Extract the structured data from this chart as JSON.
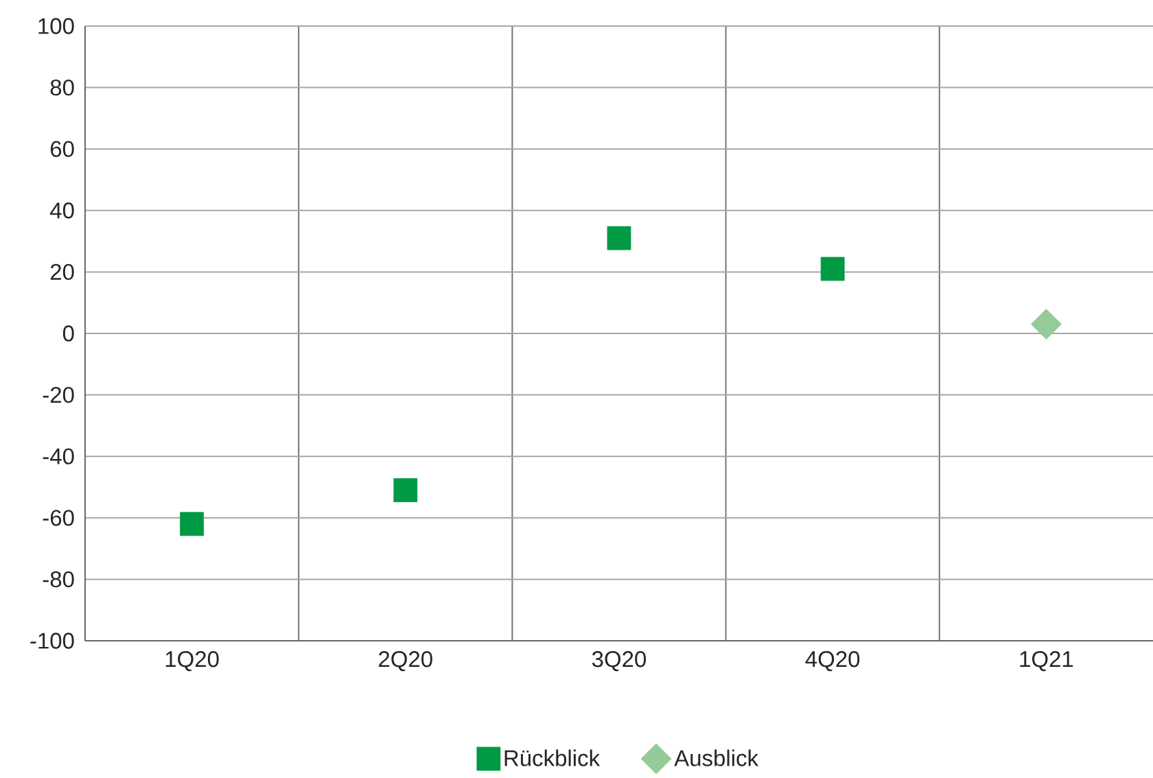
{
  "chart_data": {
    "type": "scatter",
    "categories": [
      "1Q20",
      "2Q20",
      "3Q20",
      "4Q20",
      "1Q21"
    ],
    "series": [
      {
        "name": "Rückblick",
        "color": "#009a44",
        "marker": "square",
        "values": [
          -62,
          -51,
          31,
          21,
          null
        ]
      },
      {
        "name": "Ausblick",
        "color": "#94cb98",
        "marker": "diamond",
        "values": [
          null,
          null,
          null,
          null,
          3
        ]
      }
    ],
    "ylim": [
      -100,
      100
    ],
    "yticks": [
      -100,
      -80,
      -60,
      -40,
      -20,
      0,
      20,
      40,
      60,
      80,
      100
    ],
    "grid": true,
    "legend": "bottom"
  }
}
